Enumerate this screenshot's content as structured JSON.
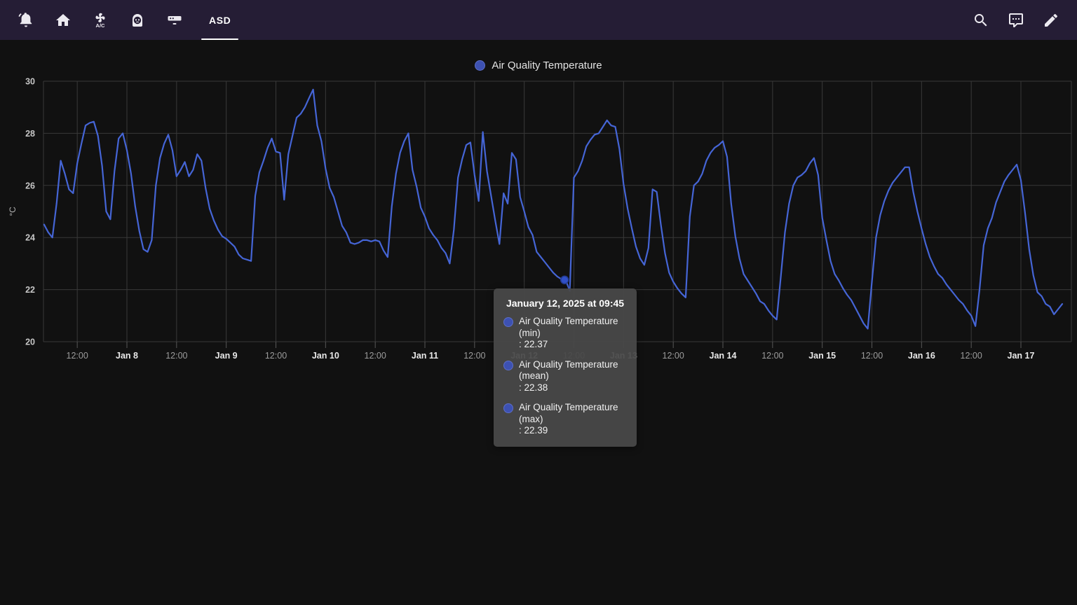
{
  "header": {
    "tab_label": "ASD",
    "icons_left": [
      "notifications",
      "home",
      "air-conditioner",
      "smart-speaker",
      "soundbar"
    ],
    "icons_right": [
      "search",
      "assist",
      "edit"
    ],
    "ac_icon_text": "A/C",
    "bar_color": "#251d35"
  },
  "legend": {
    "label": "Air Quality Temperature",
    "color": "#3d51b2"
  },
  "tooltip": {
    "title": "January 12, 2025 at 09:45",
    "items": [
      {
        "name": "Air Quality Temperature",
        "qualifier": "(min)",
        "value": ": 22.37"
      },
      {
        "name": "Air Quality Temperature",
        "qualifier": "(mean)",
        "value": ": 22.38"
      },
      {
        "name": "Air Quality Temperature",
        "qualifier": "(max)",
        "value": ": 22.39"
      }
    ]
  },
  "chart_data": {
    "type": "line",
    "title": "Air Quality Temperature",
    "xlabel": "",
    "ylabel": "°C",
    "legend_position": "top-center",
    "grid": true,
    "y_axis": {
      "label": "°C",
      "range": [
        20,
        30
      ],
      "ticks": [
        30,
        28,
        26,
        24,
        22,
        20
      ]
    },
    "x_axis": {
      "t_unit": "hours since 2025-01-07 00:00",
      "tick_interval_hours": 12,
      "ticks": [
        {
          "t": 12,
          "label": "12:00"
        },
        {
          "t": 24,
          "label": "Jan 8",
          "bold": true
        },
        {
          "t": 36,
          "label": "12:00"
        },
        {
          "t": 48,
          "label": "Jan 9",
          "bold": true
        },
        {
          "t": 60,
          "label": "12:00"
        },
        {
          "t": 72,
          "label": "Jan 10",
          "bold": true
        },
        {
          "t": 84,
          "label": "12:00"
        },
        {
          "t": 96,
          "label": "Jan 11",
          "bold": true
        },
        {
          "t": 108,
          "label": "12:00"
        },
        {
          "t": 120,
          "label": "Jan 12",
          "bold": true
        },
        {
          "t": 132,
          "label": "12:00"
        },
        {
          "t": 144,
          "label": "Jan 13",
          "bold": true
        },
        {
          "t": 156,
          "label": "12:00"
        },
        {
          "t": 168,
          "label": "Jan 14",
          "bold": true
        },
        {
          "t": 180,
          "label": "12:00"
        },
        {
          "t": 192,
          "label": "Jan 15",
          "bold": true
        },
        {
          "t": 204,
          "label": "12:00"
        },
        {
          "t": 216,
          "label": "Jan 16",
          "bold": true
        },
        {
          "t": 228,
          "label": "12:00"
        },
        {
          "t": 240,
          "label": "Jan 17",
          "bold": true
        }
      ]
    },
    "series": [
      {
        "name": "Air Quality Temperature",
        "color": "#4565d6",
        "t0_hours": 4,
        "dt_hours": 1,
        "values": [
          24.5,
          24.2,
          24.0,
          25.3,
          26.95,
          26.45,
          25.85,
          25.7,
          26.85,
          27.6,
          28.3,
          28.4,
          28.45,
          27.9,
          26.75,
          25.0,
          24.7,
          26.55,
          27.8,
          28.0,
          27.35,
          26.45,
          25.2,
          24.25,
          23.55,
          23.45,
          23.9,
          26.0,
          27.05,
          27.6,
          27.95,
          27.35,
          26.35,
          26.6,
          26.9,
          26.35,
          26.6,
          27.2,
          26.95,
          25.9,
          25.1,
          24.65,
          24.3,
          24.05,
          23.95,
          23.8,
          23.65,
          23.35,
          23.2,
          23.15,
          23.1,
          25.6,
          26.5,
          26.95,
          27.45,
          27.8,
          27.3,
          27.25,
          25.45,
          27.2,
          27.9,
          28.6,
          28.75,
          29.0,
          29.35,
          29.68,
          28.3,
          27.7,
          26.65,
          25.9,
          25.55,
          25.0,
          24.45,
          24.2,
          23.8,
          23.75,
          23.8,
          23.9,
          23.9,
          23.85,
          23.9,
          23.85,
          23.5,
          23.25,
          25.2,
          26.45,
          27.25,
          27.7,
          28.0,
          26.6,
          25.95,
          25.15,
          24.8,
          24.35,
          24.1,
          23.9,
          23.6,
          23.4,
          23.0,
          24.3,
          26.3,
          27.0,
          27.55,
          27.65,
          26.4,
          25.4,
          28.05,
          26.55,
          25.6,
          24.65,
          23.75,
          25.7,
          25.3,
          27.25,
          27.0,
          25.55,
          25.0,
          24.4,
          24.1,
          23.45,
          23.25,
          23.05,
          22.85,
          22.65,
          22.5,
          22.4,
          22.37,
          21.95,
          26.3,
          26.55,
          26.95,
          27.5,
          27.75,
          27.95,
          28.0,
          28.25,
          28.5,
          28.3,
          28.25,
          27.4,
          26.05,
          25.1,
          24.35,
          23.65,
          23.2,
          22.95,
          23.6,
          25.85,
          25.75,
          24.5,
          23.4,
          22.65,
          22.3,
          22.05,
          21.85,
          21.7,
          24.8,
          26.0,
          26.15,
          26.45,
          26.95,
          27.25,
          27.45,
          27.55,
          27.7,
          27.1,
          25.3,
          24.05,
          23.2,
          22.6,
          22.35,
          22.1,
          21.85,
          21.55,
          21.45,
          21.2,
          21.0,
          20.85,
          22.5,
          24.2,
          25.3,
          26.0,
          26.3,
          26.4,
          26.55,
          26.85,
          27.05,
          26.4,
          24.75,
          23.9,
          23.1,
          22.6,
          22.35,
          22.05,
          21.8,
          21.6,
          21.3,
          21.0,
          20.7,
          20.5,
          22.3,
          24.0,
          24.85,
          25.4,
          25.8,
          26.1,
          26.3,
          26.5,
          26.7,
          26.7,
          25.75,
          25.0,
          24.35,
          23.75,
          23.25,
          22.9,
          22.6,
          22.45,
          22.2,
          22.0,
          21.8,
          21.6,
          21.45,
          21.2,
          21.0,
          20.6,
          22.0,
          23.7,
          24.35,
          24.75,
          25.35,
          25.75,
          26.15,
          26.4,
          26.6,
          26.8,
          26.2,
          24.95,
          23.55,
          22.55,
          21.9,
          21.75,
          21.45,
          21.35,
          21.05,
          21.25,
          21.45
        ]
      }
    ],
    "highlight": {
      "t": 129.75,
      "value": 22.37,
      "time_label": "January 12, 2025 at 09:45",
      "min": 22.37,
      "mean": 22.38,
      "max": 22.39
    }
  }
}
